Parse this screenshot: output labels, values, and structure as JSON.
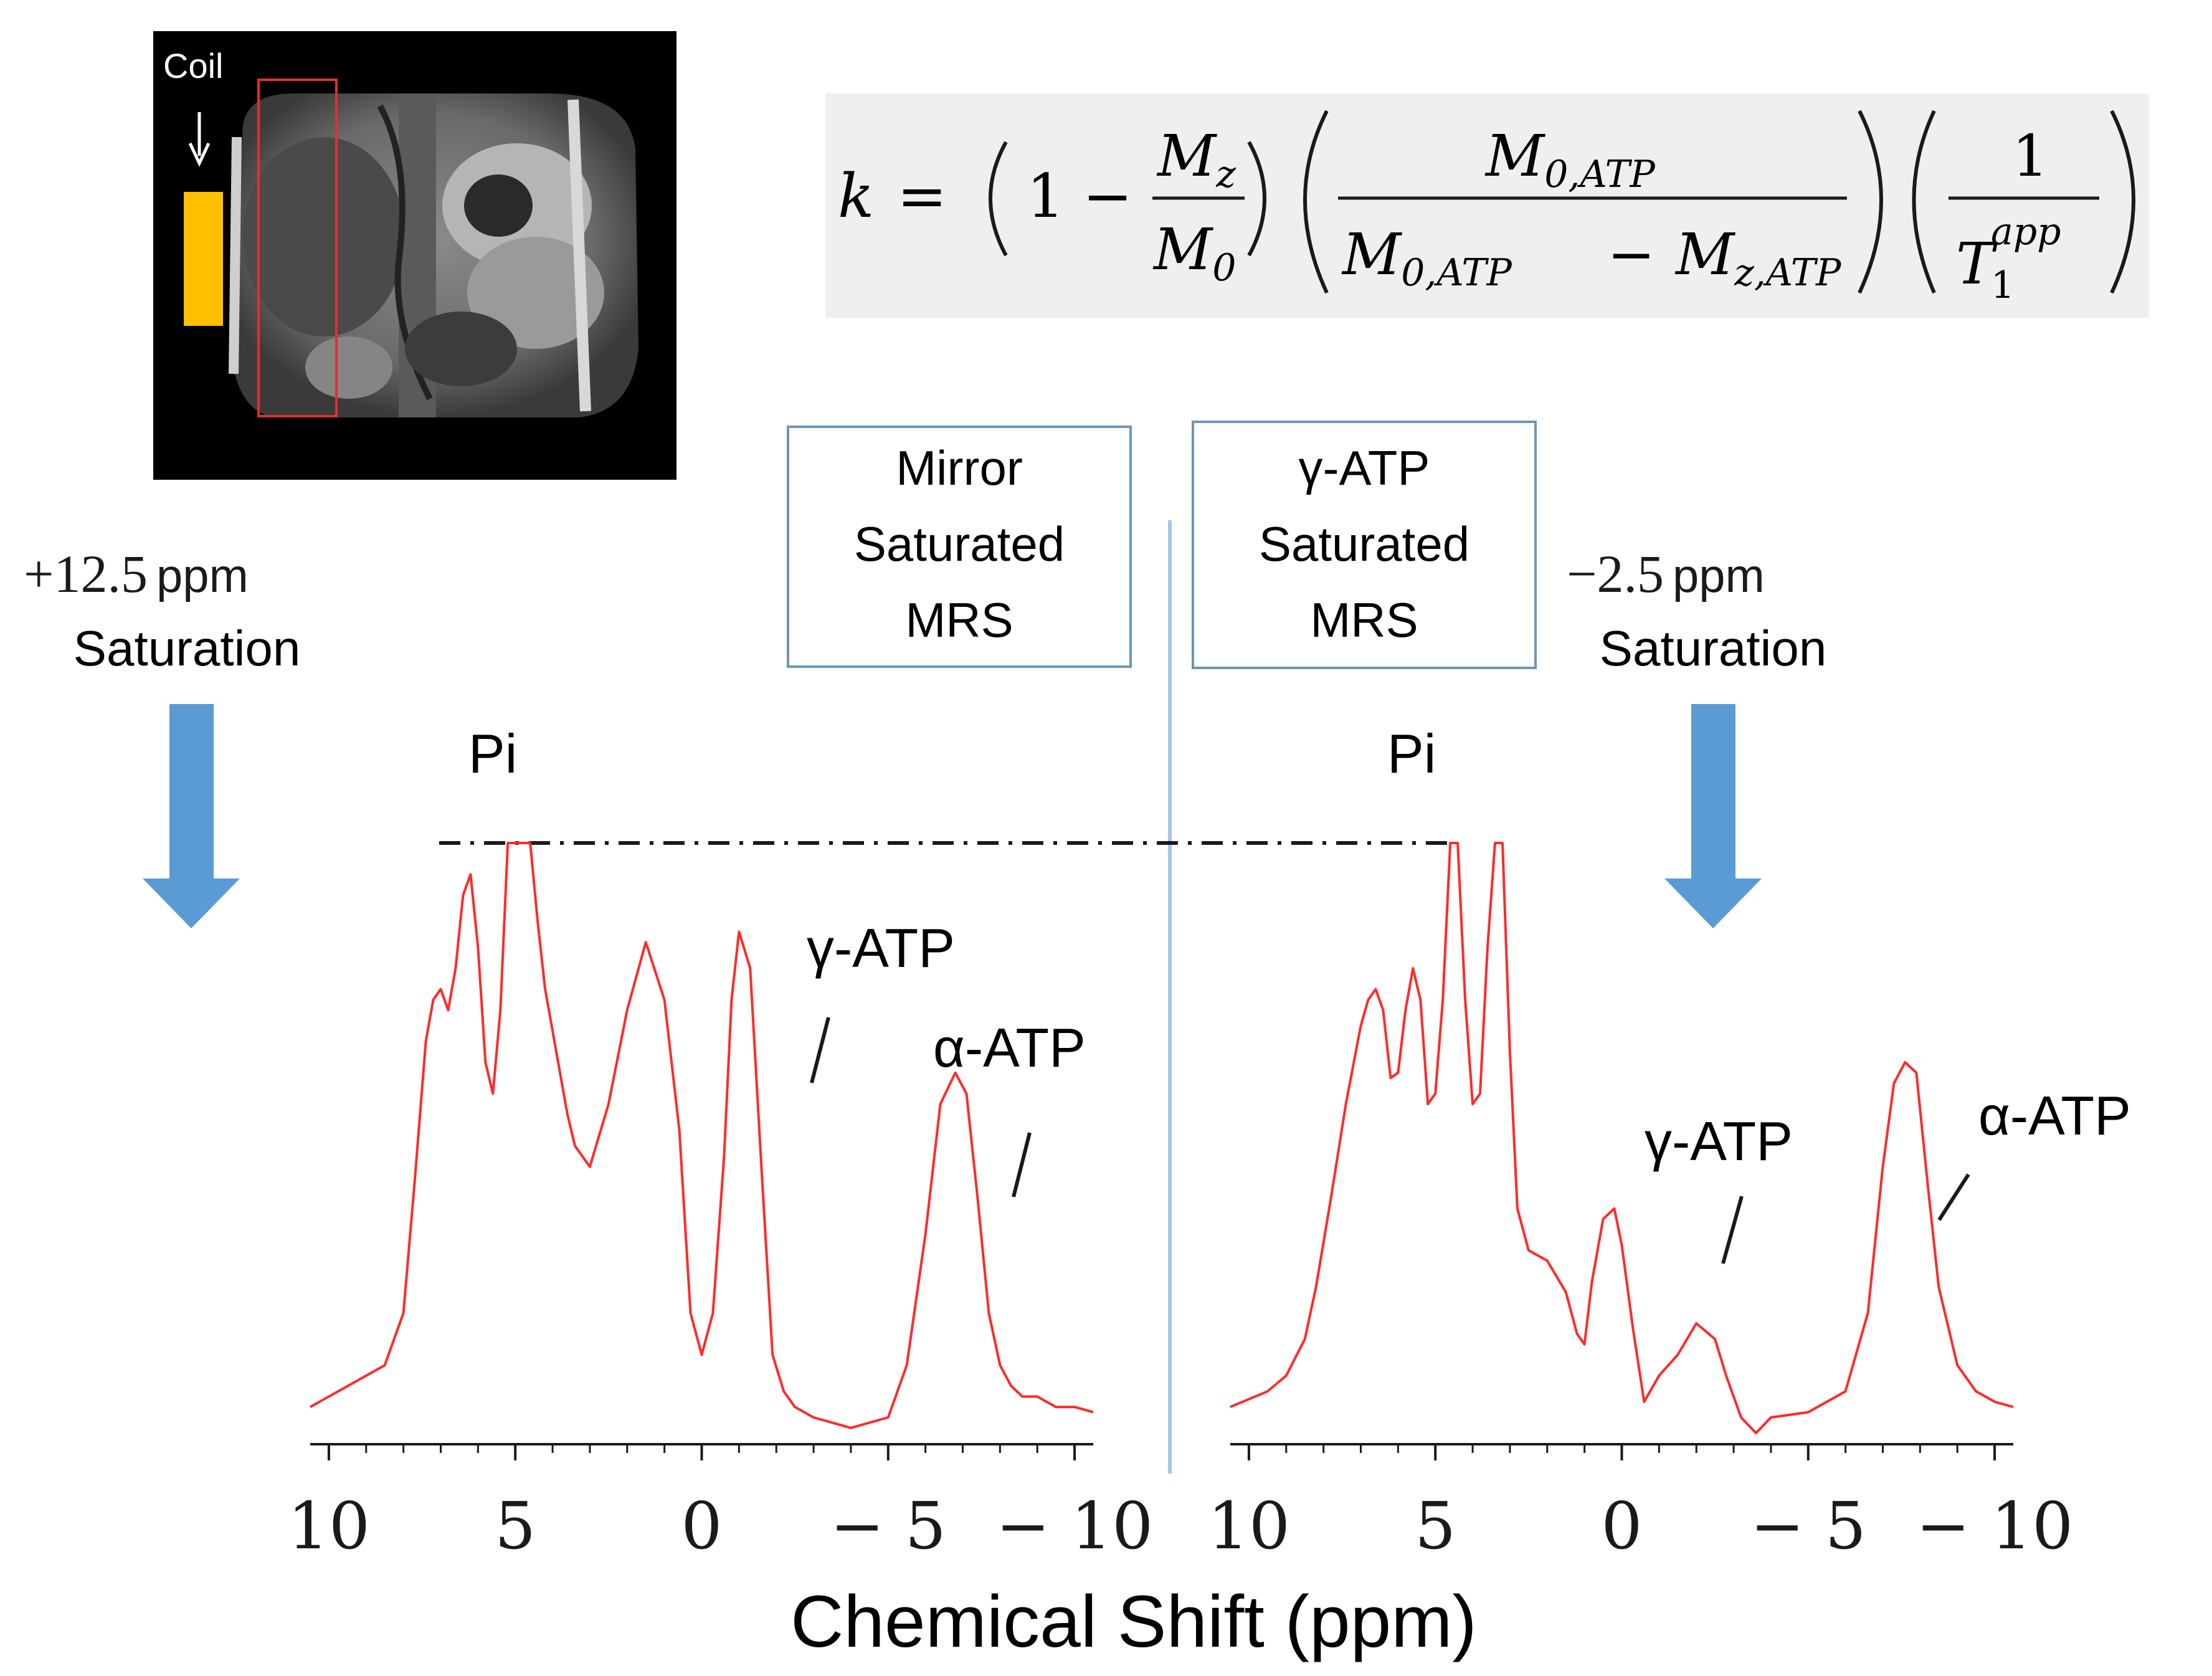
{
  "mri": {
    "coil_label": "Coil"
  },
  "equation": {
    "k": "k",
    "equals": "=",
    "one": "1",
    "minus": "−",
    "Mz": "M",
    "Mz_sub": "z",
    "M0": "M",
    "M0_sub": "0",
    "M0ATP": "M",
    "M0ATP_sub": "0,ATP",
    "MzATP": "M",
    "MzATP_sub": "z,ATP",
    "T": "T",
    "T_sub": "1",
    "T_sup": "app"
  },
  "left": {
    "saturation_value": "+12.5",
    "saturation_unit": "ppm",
    "saturation_word": "Saturation",
    "box_lines": [
      "Mirror",
      "Saturated",
      "MRS"
    ],
    "pi_label": "Pi",
    "gamma_label": "γ-ATP",
    "alpha_label": "α-ATP"
  },
  "right": {
    "saturation_value": "−2.5",
    "saturation_unit": "ppm",
    "saturation_word": "Saturation",
    "box_lines": [
      "γ-ATP",
      "Saturated",
      "MRS"
    ],
    "pi_label": "Pi",
    "gamma_label": "γ-ATP",
    "alpha_label": "α-ATP"
  },
  "x_axis_label": "Chemical Shift (ppm)",
  "colors": {
    "spectrum": "#ff2a2a",
    "arrow": "#5b9bd5",
    "box_border": "#6f95b8",
    "divider": "#a9c7e6",
    "coil": "#ffc000",
    "voxel": "#e03030",
    "equation_bg": "#efefef"
  },
  "chart_data": [
    {
      "type": "line",
      "title": "Mirror Saturated MRS (+12.5 ppm Saturation)",
      "xlabel": "Chemical Shift (ppm)",
      "ylabel": "",
      "xlim": [
        10.5,
        -10.5
      ],
      "ylim": [
        0,
        1.1
      ],
      "xticks": [
        10,
        5,
        0,
        -5,
        -10
      ],
      "xtick_labels": [
        "10",
        "5",
        "0",
        "− 5",
        "− 10"
      ],
      "x": [
        10.5,
        9.5,
        8.5,
        8.0,
        7.7,
        7.4,
        7.2,
        7.0,
        6.8,
        6.6,
        6.4,
        6.2,
        6.0,
        5.8,
        5.6,
        5.4,
        5.2,
        5.0,
        4.8,
        4.6,
        4.4,
        4.2,
        4.0,
        3.8,
        3.6,
        3.4,
        3.0,
        2.5,
        2.0,
        1.5,
        1.0,
        0.6,
        0.3,
        0.0,
        -0.3,
        -0.6,
        -0.8,
        -1.0,
        -1.3,
        -1.6,
        -1.9,
        -2.2,
        -2.5,
        -3.0,
        -3.5,
        -4.0,
        -5.0,
        -5.5,
        -6.0,
        -6.4,
        -6.8,
        -7.1,
        -7.4,
        -7.7,
        -8.0,
        -8.3,
        -8.6,
        -9.0,
        -9.5,
        -10.0,
        -10.5
      ],
      "series": [
        {
          "name": "Mirror saturated spectrum",
          "values": [
            0.02,
            0.06,
            0.1,
            0.2,
            0.45,
            0.72,
            0.8,
            0.82,
            0.78,
            0.86,
            1.0,
            1.04,
            0.9,
            0.68,
            0.62,
            0.78,
            1.1,
            1.1,
            1.1,
            1.1,
            0.95,
            0.82,
            0.74,
            0.66,
            0.58,
            0.52,
            0.48,
            0.6,
            0.78,
            0.91,
            0.8,
            0.55,
            0.2,
            0.12,
            0.2,
            0.5,
            0.8,
            0.93,
            0.86,
            0.48,
            0.12,
            0.05,
            0.02,
            0.0,
            -0.01,
            -0.02,
            0.0,
            0.1,
            0.35,
            0.6,
            0.66,
            0.62,
            0.42,
            0.2,
            0.1,
            0.06,
            0.04,
            0.04,
            0.02,
            0.02,
            0.01
          ]
        }
      ]
    },
    {
      "type": "line",
      "title": "γ-ATP Saturated MRS (−2.5 ppm Saturation)",
      "xlabel": "Chemical Shift (ppm)",
      "ylabel": "",
      "xlim": [
        10.5,
        -10.5
      ],
      "ylim": [
        0,
        1.1
      ],
      "xticks": [
        10,
        5,
        0,
        -5,
        -10
      ],
      "xtick_labels": [
        "10",
        "5",
        "0",
        "− 5",
        "− 10"
      ],
      "x": [
        10.5,
        9.5,
        9.0,
        8.5,
        8.2,
        7.8,
        7.4,
        7.0,
        6.8,
        6.6,
        6.4,
        6.2,
        6.0,
        5.8,
        5.6,
        5.4,
        5.2,
        5.0,
        4.8,
        4.6,
        4.4,
        4.2,
        4.0,
        3.8,
        3.6,
        3.4,
        3.2,
        3.0,
        2.8,
        2.5,
        2.0,
        1.5,
        1.2,
        1.0,
        0.8,
        0.5,
        0.2,
        0.0,
        -0.3,
        -0.6,
        -1.0,
        -1.5,
        -2.0,
        -2.5,
        -2.8,
        -3.2,
        -3.6,
        -4.0,
        -5.0,
        -6.0,
        -6.6,
        -7.0,
        -7.3,
        -7.6,
        -7.9,
        -8.2,
        -8.5,
        -9.0,
        -9.5,
        -10.0,
        -10.5
      ],
      "series": [
        {
          "name": "γ-ATP saturated spectrum",
          "values": [
            0.02,
            0.05,
            0.08,
            0.15,
            0.25,
            0.42,
            0.6,
            0.75,
            0.8,
            0.82,
            0.78,
            0.65,
            0.66,
            0.78,
            0.86,
            0.8,
            0.6,
            0.62,
            0.8,
            1.1,
            1.1,
            0.8,
            0.6,
            0.62,
            0.9,
            1.1,
            1.1,
            0.7,
            0.4,
            0.32,
            0.3,
            0.24,
            0.16,
            0.14,
            0.26,
            0.38,
            0.4,
            0.33,
            0.17,
            0.03,
            0.08,
            0.12,
            0.18,
            0.15,
            0.08,
            0.0,
            -0.03,
            0.0,
            0.01,
            0.05,
            0.2,
            0.48,
            0.64,
            0.68,
            0.66,
            0.45,
            0.25,
            0.1,
            0.05,
            0.03,
            0.02
          ]
        }
      ]
    }
  ]
}
